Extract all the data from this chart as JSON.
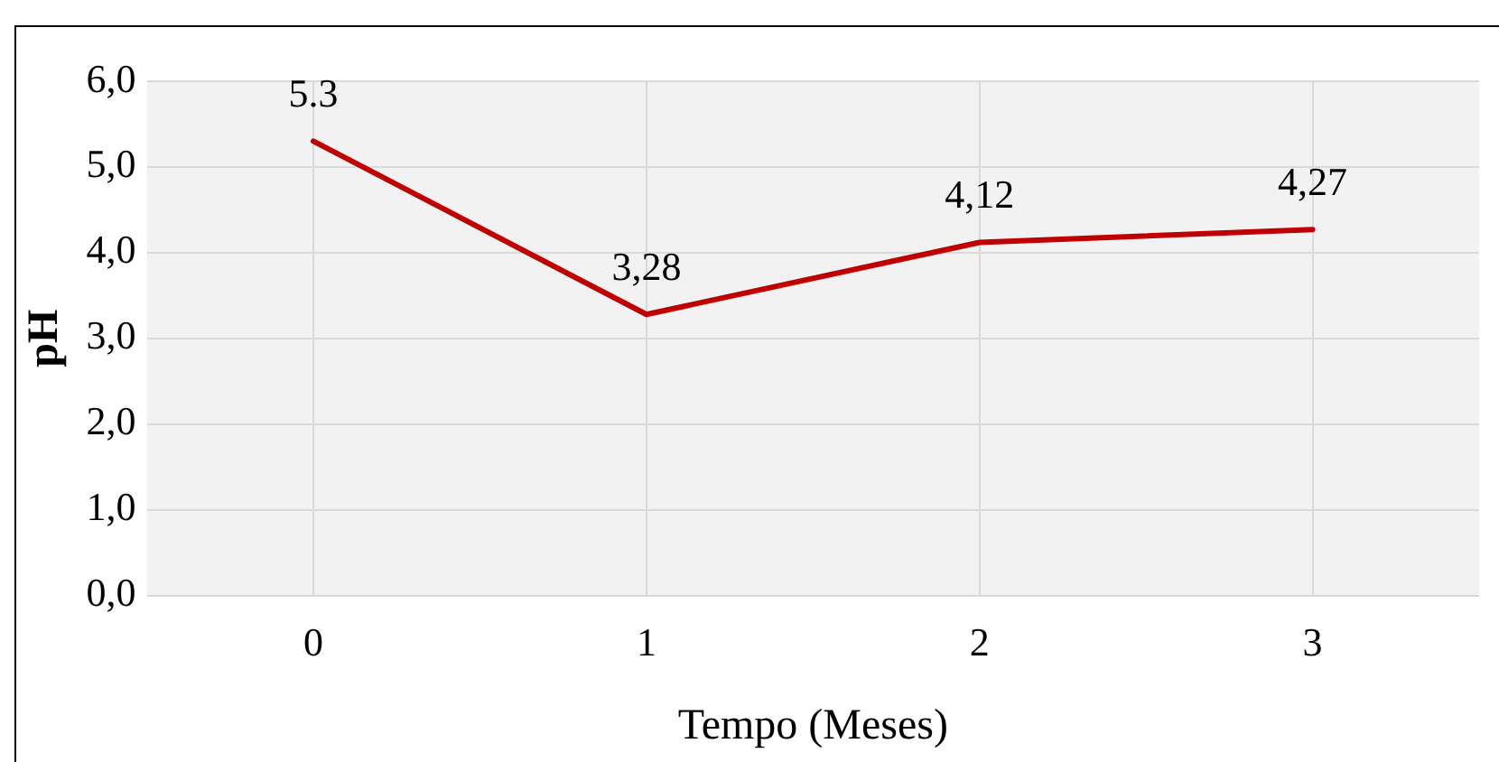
{
  "chart_data": {
    "type": "line",
    "xlabel": "Tempo (Meses)",
    "ylabel": "pH",
    "categories": [
      "0",
      "1",
      "2",
      "3"
    ],
    "series": [
      {
        "color": "#c00000",
        "values": [
          5.3,
          3.28,
          4.12,
          4.27
        ],
        "value_labels": [
          "5.3",
          "3,28",
          "4,12",
          "4,27"
        ]
      }
    ],
    "ylim": [
      0,
      6
    ],
    "yticks": [
      {
        "value": 0,
        "label": "0,0"
      },
      {
        "value": 1,
        "label": "1,0"
      },
      {
        "value": 2,
        "label": "2,0"
      },
      {
        "value": 3,
        "label": "3,0"
      },
      {
        "value": 4,
        "label": "4,0"
      },
      {
        "value": 5,
        "label": "5,0"
      },
      {
        "value": 6,
        "label": "6,0"
      }
    ],
    "grid": true,
    "legend": false,
    "marker": "none",
    "line_style": "solid"
  }
}
